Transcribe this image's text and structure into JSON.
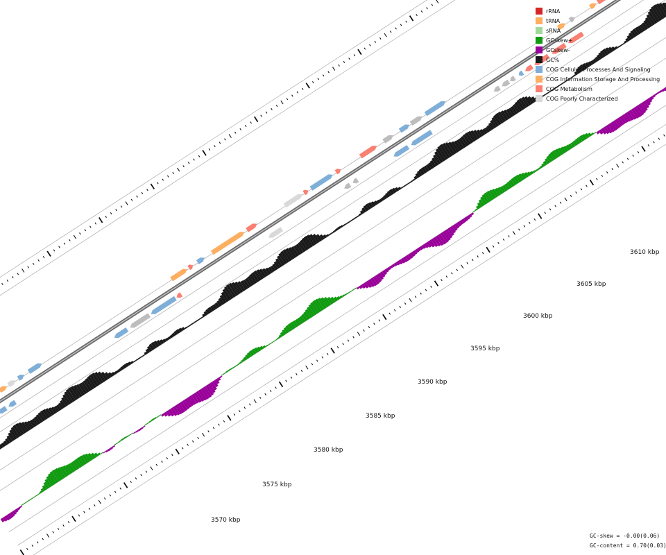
{
  "legend": {
    "items": [
      {
        "label": "rRNA",
        "color": "#d62728"
      },
      {
        "label": "tRNA",
        "color": "#fdae61"
      },
      {
        "label": "sRNA",
        "color": "#a1d99b"
      },
      {
        "label": "GCskew+",
        "color": "#109a10"
      },
      {
        "label": "GCskew-",
        "color": "#990099"
      },
      {
        "label": "GC%",
        "color": "#1a1a1a"
      },
      {
        "label": "COG Cellular Processes And Signaling",
        "color": "#7fafd8"
      },
      {
        "label": "COG Information Storage And Processing",
        "color": "#fdae61"
      },
      {
        "label": "COG Metabolism",
        "color": "#fa8072"
      },
      {
        "label": "COG Poorly Characterized",
        "color": "#d9d9d9"
      }
    ]
  },
  "axis": {
    "tick_labels": [
      "3570 kbp",
      "3575 kbp",
      "3580 kbp",
      "3585 kbp",
      "3590 kbp",
      "3595 kbp",
      "3600 kbp",
      "3605 kbp",
      "3610 kbp"
    ]
  },
  "stats": {
    "gc_skew": "GC-skew = -0.00(0.06)",
    "gc_content": "GC-content = 0.70(0.03)"
  },
  "colors": {
    "cog_cellular": "#7fafd8",
    "cog_info": "#fdae61",
    "cog_metabolism": "#fa8072",
    "cog_poor": "#d9d9d9",
    "unassigned": "#bdbdbd",
    "gc_content": "#1a1a1a",
    "skew_pos": "#109a10",
    "skew_neg": "#990099"
  }
}
